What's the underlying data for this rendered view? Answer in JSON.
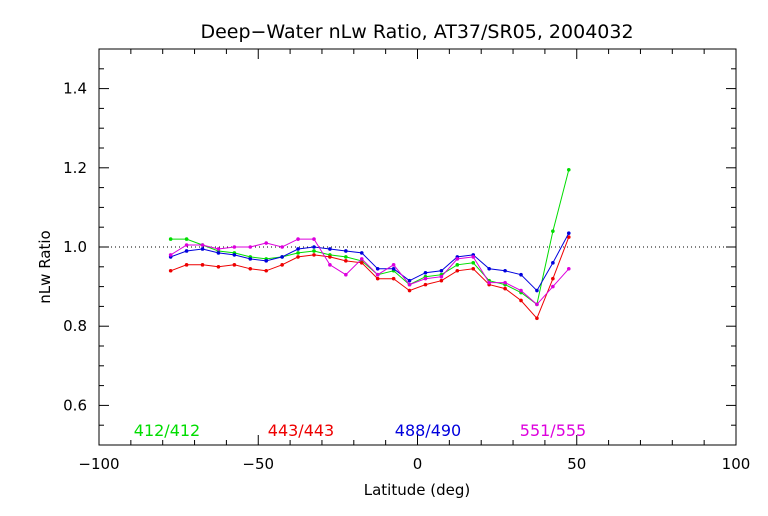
{
  "chart_data": {
    "type": "line",
    "title": "Deep−Water nLw Ratio, AT37/SR05, 2004032",
    "xlabel": "Latitude (deg)",
    "ylabel": "nLw Ratio",
    "xlim": [
      -100,
      100
    ],
    "ylim": [
      0.5,
      1.5
    ],
    "x_ticks": [
      -100,
      -50,
      0,
      50,
      100
    ],
    "x_tick_labels": [
      "−100",
      "−50",
      "0",
      "50",
      "100"
    ],
    "y_ticks": [
      0.6,
      0.8,
      1.0,
      1.2,
      1.4
    ],
    "y_tick_labels": [
      "0.6",
      "0.8",
      "1.0",
      "1.2",
      "1.4"
    ],
    "reference_line": {
      "y": 1.0,
      "style": "dotted",
      "color": "#000000"
    },
    "grid": false,
    "legend_placement": "bottom",
    "series": [
      {
        "name": "412/412",
        "color": "#00dd00",
        "x": [
          -77.5,
          -72.5,
          -67.5,
          -62.5,
          -57.5,
          -52.5,
          -47.5,
          -42.5,
          -37.5,
          -32.5,
          -27.5,
          -22.5,
          -17.5,
          -12.5,
          -7.5,
          -2.5,
          2.5,
          7.5,
          12.5,
          17.5,
          22.5,
          27.5,
          32.5,
          37.5,
          42.5,
          47.5
        ],
        "values": [
          1.02,
          1.02,
          1.005,
          0.99,
          0.985,
          0.975,
          0.97,
          0.975,
          0.985,
          0.99,
          0.98,
          0.975,
          0.965,
          0.93,
          0.94,
          0.905,
          0.925,
          0.93,
          0.955,
          0.96,
          0.915,
          0.905,
          0.885,
          0.855,
          1.04,
          1.195
        ]
      },
      {
        "name": "443/443",
        "color": "#ee0000",
        "x": [
          -77.5,
          -72.5,
          -67.5,
          -62.5,
          -57.5,
          -52.5,
          -47.5,
          -42.5,
          -37.5,
          -32.5,
          -27.5,
          -22.5,
          -17.5,
          -12.5,
          -7.5,
          -2.5,
          2.5,
          7.5,
          12.5,
          17.5,
          22.5,
          27.5,
          32.5,
          37.5,
          42.5,
          47.5
        ],
        "values": [
          0.94,
          0.955,
          0.955,
          0.95,
          0.955,
          0.945,
          0.94,
          0.955,
          0.975,
          0.98,
          0.975,
          0.965,
          0.96,
          0.92,
          0.92,
          0.89,
          0.905,
          0.915,
          0.94,
          0.945,
          0.905,
          0.895,
          0.865,
          0.82,
          0.92,
          1.025
        ]
      },
      {
        "name": "488/490",
        "color": "#0000dd",
        "x": [
          -77.5,
          -72.5,
          -67.5,
          -62.5,
          -57.5,
          -52.5,
          -47.5,
          -42.5,
          -37.5,
          -32.5,
          -27.5,
          -22.5,
          -17.5,
          -12.5,
          -7.5,
          -2.5,
          2.5,
          7.5,
          12.5,
          17.5,
          22.5,
          27.5,
          32.5,
          37.5,
          42.5,
          47.5
        ],
        "values": [
          0.975,
          0.99,
          0.995,
          0.985,
          0.98,
          0.97,
          0.965,
          0.975,
          0.995,
          1.0,
          0.995,
          0.99,
          0.985,
          0.945,
          0.945,
          0.915,
          0.935,
          0.94,
          0.975,
          0.98,
          0.945,
          0.94,
          0.93,
          0.89,
          0.96,
          1.035
        ]
      },
      {
        "name": "551/555",
        "color": "#dd00dd",
        "x": [
          -77.5,
          -72.5,
          -67.5,
          -62.5,
          -57.5,
          -52.5,
          -47.5,
          -42.5,
          -37.5,
          -32.5,
          -27.5,
          -22.5,
          -17.5,
          -12.5,
          -7.5,
          -2.5,
          2.5,
          7.5,
          12.5,
          17.5,
          22.5,
          27.5,
          32.5,
          37.5,
          42.5,
          47.5
        ],
        "values": [
          0.98,
          1.005,
          1.005,
          0.995,
          1.0,
          1.0,
          1.01,
          1.0,
          1.02,
          1.02,
          0.955,
          0.93,
          0.97,
          0.93,
          0.955,
          0.905,
          0.92,
          0.925,
          0.97,
          0.975,
          0.91,
          0.91,
          0.89,
          0.855,
          0.9,
          0.945
        ]
      }
    ]
  }
}
